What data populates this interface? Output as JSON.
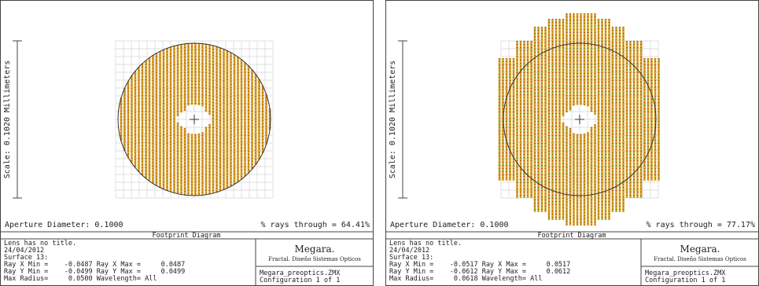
{
  "panels": [
    {
      "scale_label": "Scale: 0.1020 Millimeters",
      "aperture": "Aperture Diameter: 0.1000",
      "rays_through": "% rays through = 64.41%",
      "header": "Footprint Diagram",
      "info_lines": [
        "Lens has no title.",
        "24/04/2012",
        "Surface 13:",
        "Ray X Min =    -0.0487 Ray X Max =     0.0487",
        "Ray Y Min =    -0.0499 Ray Y Max =     0.0499",
        "Max Radius=     0.0500 Wavelength= All"
      ],
      "company": "Megara.",
      "company_sub": "Fractal. Diseño Sistemas Opticos",
      "file": "Megara_preoptics.ZMX",
      "config": "Configuration 1 of 1"
    },
    {
      "scale_label": "Scale: 0.1020 Millimeters",
      "aperture": "Aperture Diameter: 0.1000",
      "rays_through": "% rays through = 77.17%",
      "header": "Footprint Diagram",
      "info_lines": [
        "Lens has no title.",
        "24/04/2012",
        "Surface 13:",
        "Ray X Min =    -0.0517 Ray X Max =     0.0517",
        "Ray Y Min =    -0.0612 Ray Y Max =     0.0612",
        "Max Radius=     0.0618 Wavelength= All"
      ],
      "company": "Megara.",
      "company_sub": "Fractal. Diseño Sistemas Opticos",
      "file": "Megara_preoptics.ZMX",
      "config": "Configuration 1 of 1"
    }
  ]
}
